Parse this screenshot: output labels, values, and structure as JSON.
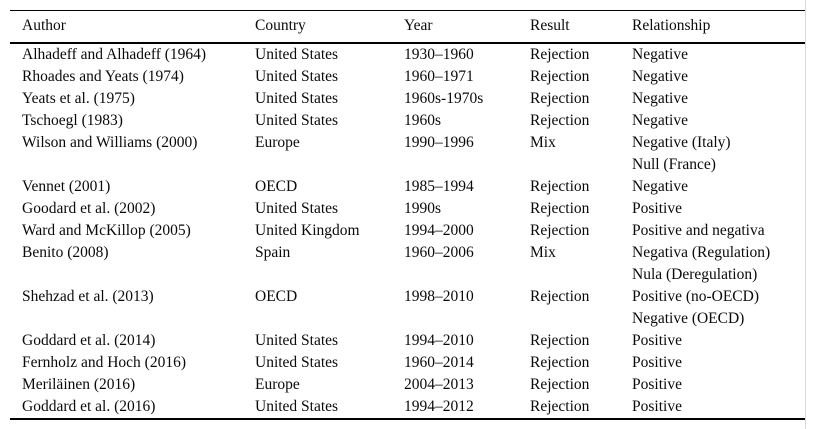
{
  "colors": {
    "background": "#ffffff",
    "text": "#0a0a0a",
    "rule": "#000000",
    "page_edge_line": "#d9d9d9"
  },
  "table": {
    "columns": [
      {
        "key": "author",
        "label": "Author"
      },
      {
        "key": "country",
        "label": "Country"
      },
      {
        "key": "year",
        "label": "Year"
      },
      {
        "key": "result",
        "label": "Result"
      },
      {
        "key": "relationship",
        "label": "Relationship"
      }
    ],
    "rows": [
      {
        "author": "Alhadeff and Alhadeff (1964)",
        "country": "United States",
        "year": "1930–1960",
        "result": "Rejection",
        "relationship": [
          "Negative"
        ]
      },
      {
        "author": "Rhoades and Yeats (1974)",
        "country": "United States",
        "year": "1960–1971",
        "result": "Rejection",
        "relationship": [
          "Negative"
        ]
      },
      {
        "author": "Yeats et al. (1975)",
        "country": "United States",
        "year": "1960s-1970s",
        "result": "Rejection",
        "relationship": [
          "Negative"
        ]
      },
      {
        "author": "Tschoegl (1983)",
        "country": "United States",
        "year": "1960s",
        "result": "Rejection",
        "relationship": [
          "Negative"
        ]
      },
      {
        "author": "Wilson and Williams (2000)",
        "country": "Europe",
        "year": "1990–1996",
        "result": "Mix",
        "relationship": [
          "Negative (Italy)",
          "Null (France)"
        ]
      },
      {
        "author": "Vennet (2001)",
        "country": "OECD",
        "year": "1985–1994",
        "result": "Rejection",
        "relationship": [
          "Negative"
        ]
      },
      {
        "author": "Goodard et al. (2002)",
        "country": "United States",
        "year": "1990s",
        "result": "Rejection",
        "relationship": [
          "Positive"
        ]
      },
      {
        "author": "Ward and McKillop (2005)",
        "country": "United Kingdom",
        "year": "1994–2000",
        "result": "Rejection",
        "relationship": [
          "Positive and negativa"
        ]
      },
      {
        "author": "Benito (2008)",
        "country": "Spain",
        "year": "1960–2006",
        "result": "Mix",
        "relationship": [
          "Negativa (Regulation)",
          "Nula (Deregulation)"
        ]
      },
      {
        "author": "Shehzad et al. (2013)",
        "country": "OECD",
        "year": "1998–2010",
        "result": "Rejection",
        "relationship": [
          "Positive (no-OECD)",
          "Negative (OECD)"
        ]
      },
      {
        "author": "Goddard et al. (2014)",
        "country": "United States",
        "year": "1994–2010",
        "result": "Rejection",
        "relationship": [
          "Positive"
        ]
      },
      {
        "author": "Fernholz and Hoch (2016)",
        "country": "United States",
        "year": "1960–2014",
        "result": "Rejection",
        "relationship": [
          "Positive"
        ]
      },
      {
        "author": "Meriläinen (2016)",
        "country": "Europe",
        "year": "2004–2013",
        "result": "Rejection",
        "relationship": [
          "Positive"
        ]
      },
      {
        "author": "Goddard et al. (2016)",
        "country": "United States",
        "year": "1994–2012",
        "result": "Rejection",
        "relationship": [
          "Positive"
        ]
      }
    ]
  }
}
